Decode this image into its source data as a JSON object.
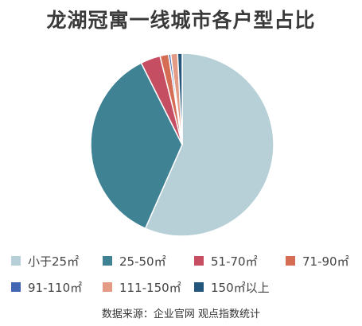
{
  "chart_data": {
    "type": "pie",
    "title": "龙湖冠寓一线城市各户型占比",
    "categories": [
      "小于25㎡",
      "25-50㎡",
      "51-70㎡",
      "71-90㎡",
      "91-110㎡",
      "111-150㎡",
      "150㎡以上"
    ],
    "values": [
      56.6,
      36.0,
      3.5,
      1.5,
      0.4,
      1.2,
      0.8
    ],
    "colors": [
      "#b7d0d8",
      "#3f8294",
      "#c64e63",
      "#d56d55",
      "#4266b1",
      "#e49b86",
      "#24567c"
    ],
    "legend_position": "bottom"
  },
  "source": "数据来源：企业官网  观点指数统计"
}
